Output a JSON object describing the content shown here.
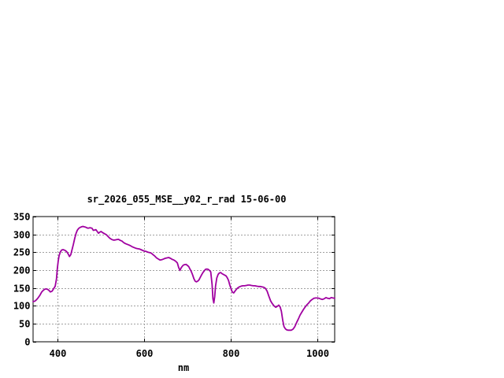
{
  "window": {
    "background": "#ffffff"
  },
  "chart_data": {
    "type": "line",
    "title": "sr_2026_055_MSE__y02_r_rad 15-06-00",
    "xlabel": "nm",
    "ylabel": "",
    "xlim": [
      344,
      1040
    ],
    "ylim": [
      0,
      350
    ],
    "xticks": [
      400,
      600,
      800,
      1000
    ],
    "yticks": [
      0,
      50,
      100,
      150,
      200,
      250,
      300,
      350
    ],
    "grid": true,
    "legend": "none",
    "colors": {
      "line": "#a000a0",
      "grid": "#a0a0a0",
      "axis": "#000000",
      "text": "#000000"
    },
    "series": [
      {
        "name": "sr_2026_055_MSE__y02_r_rad",
        "x": [
          344,
          348,
          352,
          356,
          360,
          364,
          368,
          372,
          376,
          380,
          384,
          388,
          392,
          395,
          398,
          400,
          402,
          404,
          407,
          410,
          413,
          416,
          419,
          422,
          425,
          428,
          431,
          434,
          437,
          440,
          443,
          446,
          449,
          452,
          456,
          459,
          462,
          465,
          468,
          471,
          474,
          477,
          480,
          483,
          486,
          489,
          492,
          495,
          498,
          501,
          504,
          507,
          510,
          513,
          517,
          521,
          525,
          529,
          533,
          537,
          541,
          545,
          549,
          553,
          557,
          561,
          565,
          569,
          573,
          577,
          581,
          585,
          589,
          593,
          597,
          601,
          605,
          609,
          613,
          617,
          621,
          625,
          629,
          633,
          637,
          641,
          645,
          649,
          653,
          657,
          661,
          665,
          669,
          673,
          677,
          680,
          683,
          686,
          690,
          693,
          697,
          700,
          703,
          706,
          709,
          712,
          715,
          718,
          721,
          724,
          727,
          730,
          733,
          736,
          739,
          742,
          745,
          748,
          751,
          754,
          757,
          759,
          761,
          763,
          765,
          768,
          771,
          774,
          777,
          780,
          783,
          786,
          789,
          792,
          795,
          798,
          801,
          804,
          807,
          810,
          813,
          816,
          820,
          824,
          828,
          832,
          836,
          840,
          844,
          848,
          852,
          856,
          860,
          864,
          868,
          872,
          876,
          880,
          884,
          888,
          892,
          896,
          900,
          904,
          908,
          911,
          914,
          917,
          920,
          923,
          926,
          929,
          932,
          936,
          940,
          944,
          948,
          952,
          956,
          960,
          964,
          968,
          972,
          976,
          980,
          984,
          988,
          992,
          996,
          1000,
          1004,
          1008,
          1012,
          1016,
          1020,
          1024,
          1028,
          1032,
          1036,
          1040
        ],
        "values": [
          112,
          113,
          117,
          123,
          130,
          139,
          144,
          147,
          147,
          144,
          139,
          141,
          149,
          155,
          175,
          204,
          225,
          240,
          251,
          256,
          257,
          256,
          254,
          251,
          245,
          238,
          243,
          257,
          272,
          288,
          302,
          311,
          316,
          319,
          321,
          322,
          321,
          320,
          318,
          317,
          318,
          318,
          317,
          311,
          312,
          313,
          308,
          303,
          306,
          308,
          305,
          303,
          301,
          299,
          294,
          289,
          286,
          284,
          284,
          285,
          286,
          283,
          281,
          277,
          274,
          272,
          270,
          268,
          265,
          263,
          261,
          260,
          259,
          257,
          255,
          253,
          252,
          250,
          249,
          247,
          243,
          239,
          234,
          231,
          228,
          229,
          231,
          233,
          234,
          235,
          233,
          230,
          228,
          225,
          220,
          207,
          199,
          207,
          213,
          215,
          216,
          213,
          210,
          203,
          196,
          187,
          176,
          169,
          167,
          169,
          173,
          180,
          187,
          193,
          198,
          202,
          203,
          202,
          199,
          195,
          160,
          120,
          108,
          125,
          155,
          178,
          188,
          192,
          193,
          190,
          188,
          186,
          184,
          179,
          171,
          158,
          147,
          138,
          136,
          141,
          146,
          150,
          153,
          155,
          156,
          156,
          157,
          158,
          158,
          157,
          156,
          156,
          155,
          154,
          154,
          153,
          152,
          149,
          141,
          127,
          114,
          106,
          100,
          96,
          99,
          102,
          97,
          85,
          60,
          42,
          36,
          33,
          32,
          32,
          32,
          35,
          42,
          53,
          63,
          74,
          82,
          90,
          97,
          103,
          108,
          114,
          118,
          121,
          122,
          122,
          121,
          119,
          118,
          120,
          123,
          121,
          120,
          123,
          122,
          121
        ]
      }
    ]
  }
}
